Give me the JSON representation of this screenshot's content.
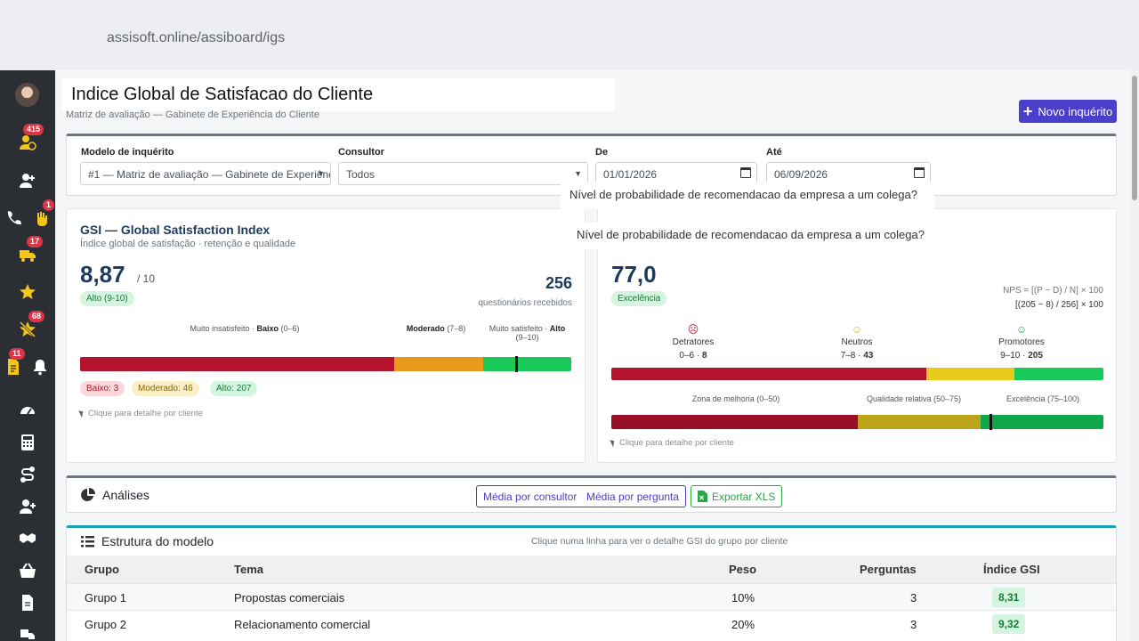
{
  "browser": {
    "url": "assisoft.online/assiboard/igs"
  },
  "sidebar": {
    "badges": {
      "pos": "415",
      "phone": "1",
      "truck": "17",
      "star_off": "68",
      "doc": "11"
    },
    "icons": [
      "avatar",
      "user-clock-icon",
      "user-plus-icon",
      "phone-icon",
      "hand-icon",
      "truck-icon",
      "star-icon",
      "star-slash-icon",
      "document-icon",
      "bell-icon",
      "gauge-icon",
      "calculator-icon",
      "route-icon",
      "user-add-icon",
      "handshake-icon",
      "basket-icon",
      "file-icon",
      "truck-loading-icon"
    ]
  },
  "page": {
    "title": "Indice Global de Satisfacao do Cliente",
    "subtitle": "Matriz de avaliação — Gabinete de Experiência do Cliente",
    "new_button": "Novo inquérito"
  },
  "filters": {
    "model_label": "Modelo de inquérito",
    "model_value": "#1 — Matriz de avaliação — Gabinete de Experiência do Cliente",
    "consultant_label": "Consultor",
    "consultant_value": "Todos",
    "from_label": "De",
    "from_value": "01/01/2026",
    "to_label": "Até",
    "to_value": "06/09/2026"
  },
  "tooltips": {
    "first": "Nível de probabilidade de recomendacao da empresa a um colega?",
    "second": "Nível de probabilidade de recomendacao da empresa a um colega?"
  },
  "gsi": {
    "title": "GSI — Global Satisfaction Index",
    "subtitle": "Índice global de satisfação · retenção e qualidade",
    "score": "8,87",
    "score_unit": "/ 10",
    "level": "Alto (9-10)",
    "responses": "256",
    "responses_label": "questionários recebidos",
    "scale": {
      "low_prefix": "Muito insatisfeito · ",
      "low_bold": "Baixo",
      "low_range": " (0–6)",
      "mid_bold": "Moderado",
      "mid_range": " (7–8)",
      "high_prefix": "Muito satisfeito · ",
      "high_bold": "Alto",
      "high_range": "(9–10)"
    },
    "bar_segments": [
      {
        "name": "Baixo",
        "span": 6.4,
        "color": "#b5122e"
      },
      {
        "name": "Moderado",
        "span": 1.8,
        "color": "#e89a1d"
      },
      {
        "name": "Alto",
        "span": 1.8,
        "color": "#19c95a"
      }
    ],
    "marker_value": 8.87,
    "counts": {
      "low": "Baixo: 3",
      "mid": "Moderado: 46",
      "high": "Alto: 207"
    },
    "hint": "Clique para detalhe por cliente",
    "colors": {
      "accent": "#1e3a5f"
    }
  },
  "nps": {
    "score": "77,0",
    "level": "Excelência",
    "formula_line1": "NPS = [(P − D) / N] × 100",
    "formula_line2": "[(205 − 8) / 256] × 100",
    "segments": [
      {
        "label": "Detratores",
        "range": "0–6 · ",
        "count": "8",
        "face": "☹",
        "color": "#b5122e"
      },
      {
        "label": "Neutros",
        "range": "7–8 · ",
        "count": "43",
        "face": "☺",
        "color": "#e6c51d"
      },
      {
        "label": "Promotores",
        "range": "9–10 · ",
        "count": "205",
        "face": "☺",
        "color": "#19c95a"
      }
    ],
    "dist_bar": [
      {
        "name": "Detratores",
        "share": 64,
        "color": "#b5122e"
      },
      {
        "name": "Neutros",
        "share": 18,
        "color": "#e6cb1d"
      },
      {
        "name": "Promotores",
        "share": 18,
        "color": "#19c95a"
      }
    ],
    "zones": {
      "z1": "Zona de melhoria (0–50)",
      "z2": "Qualidade relativa (50–75)",
      "z3": "Excelência (75–100)"
    },
    "zone_bar": [
      {
        "name": "Zona de melhoria",
        "share": 50,
        "color": "#980f2a"
      },
      {
        "name": "Qualidade relativa",
        "share": 25,
        "color": "#bca518"
      },
      {
        "name": "Excelência",
        "share": 25,
        "color": "#12a64a"
      }
    ],
    "marker_value": 77.0,
    "hint": "Clique para detalhe por cliente"
  },
  "analises": {
    "title": "Análises",
    "btn_consultant": "Média por consultor",
    "btn_question": "Média por pergunta",
    "btn_xls": "Exportar XLS"
  },
  "estrutura": {
    "title": "Estrutura do modelo",
    "note": "Clique numa linha para ver o detalhe GSI do grupo por cliente",
    "headers": {
      "group": "Grupo",
      "theme": "Tema",
      "weight": "Peso",
      "questions": "Perguntas",
      "index": "Índice GSI"
    },
    "rows": [
      {
        "group": "Grupo 1",
        "theme": "Propostas comerciais",
        "weight": "10%",
        "questions": "3",
        "index": "8,31"
      },
      {
        "group": "Grupo 2",
        "theme": "Relacionamento comercial",
        "weight": "20%",
        "questions": "3",
        "index": "9,32"
      }
    ]
  }
}
